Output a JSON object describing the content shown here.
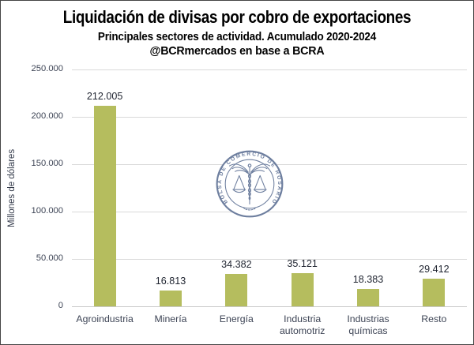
{
  "header": {
    "title": "Liquidación de divisas por cobro de exportaciones",
    "subtitle": "Principales sectores de actividad. Acumulado 2020-2024",
    "attribution": "@BCRmercados en base a BCRA"
  },
  "chart_data": {
    "type": "bar",
    "title": "Liquidación de divisas por cobro de exportaciones",
    "subtitle": "Principales sectores de actividad. Acumulado 2020-2024",
    "source": "@BCRmercados en base a BCRA",
    "categories": [
      "Agroindustria",
      "Minería",
      "Energía",
      "Industria automotriz",
      "Industrias químicas",
      "Resto"
    ],
    "values": [
      212005,
      16813,
      34382,
      35121,
      18383,
      29412
    ],
    "data_labels": [
      "212.005",
      "16.813",
      "34.382",
      "35.121",
      "18.383",
      "29.412"
    ],
    "xlabel": "",
    "ylabel": "Millones de dólares",
    "ylim": [
      0,
      250000
    ],
    "ytick_step": 50000,
    "ytick_labels": [
      "0",
      "50.000",
      "100.000",
      "150.000",
      "200.000",
      "250.000"
    ],
    "grid": true,
    "legend": false,
    "bar_color": "#b5bd5e"
  },
  "watermark": {
    "text": "BOLSA DE COMERCIO DE ROSARIO",
    "color": "#6e7f9f"
  },
  "colors": {
    "background": "#ffffff",
    "border": "#444444",
    "gridline": "#d9d9d9",
    "baseline": "#c9c9c9",
    "axis_text": "#3d4455",
    "data_label_text": "#1f2430",
    "title_text": "#000000"
  }
}
